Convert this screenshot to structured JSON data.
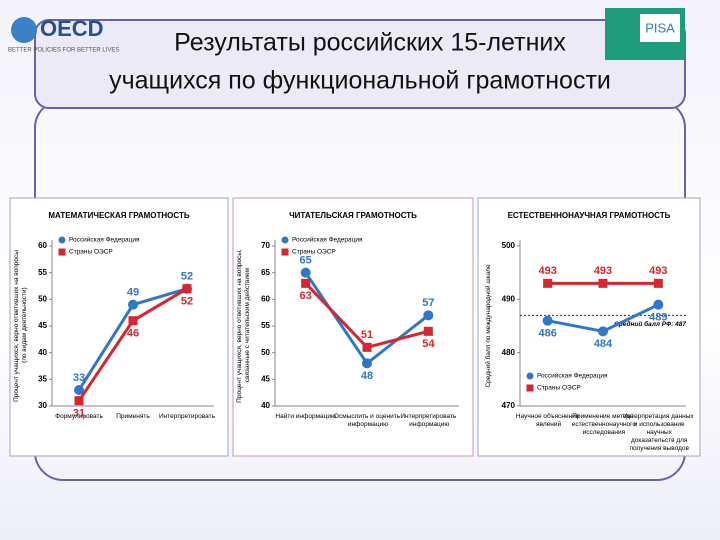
{
  "header": {
    "title": [
      "Результаты российских 15-летних",
      "учащихся по функциональной грамотности"
    ],
    "oecd": "OECD",
    "oecd_tagline": "BETTER POLICIES FOR BETTER LIVES",
    "pisa": "PISA"
  },
  "chart_data": [
    {
      "type": "line",
      "title": "МАТЕМАТИЧЕСКАЯ ГРАМОТНОСТЬ",
      "y_label": "Процент учащихся, верно ответивших на вопросы (по видам деятельности)",
      "categories": [
        "Формулировать",
        "Применять",
        "Интерпретировать"
      ],
      "series": [
        {
          "name": "Российская Федерация",
          "color": "#2f78c8",
          "values": [
            33,
            49,
            52
          ]
        },
        {
          "name": "Страны ОЭСР",
          "color": "#d8252e",
          "values": [
            31,
            46,
            52
          ]
        }
      ],
      "ylim": [
        30,
        60
      ],
      "yticks": [
        30,
        35,
        40,
        45,
        50,
        55,
        60
      ],
      "legend": "top-left"
    },
    {
      "type": "line",
      "title": "ЧИТАТЕЛЬСКАЯ ГРАМОТНОСТЬ",
      "y_label": "Процент учащихся, верно ответивших на вопросы, связанные с читательским действием",
      "categories": [
        "Найти информацию",
        "Осмыслить и оценить информацию",
        "Интерпретировать информацию"
      ],
      "series": [
        {
          "name": "Российская Федерация",
          "color": "#2f78c8",
          "values": [
            65,
            48,
            57
          ]
        },
        {
          "name": "Страны ОЭСР",
          "color": "#d8252e",
          "values": [
            63,
            51,
            54
          ]
        }
      ],
      "ylim": [
        40,
        70
      ],
      "yticks": [
        40,
        45,
        50,
        55,
        60,
        65,
        70
      ],
      "legend": "top-left"
    },
    {
      "type": "line",
      "title": "ЕСТЕСТВЕННОНАУЧНАЯ ГРАМОТНОСТЬ",
      "y_label": "Средний балл по международной шкале",
      "categories": [
        "Научное объяснение явлений",
        "Применение метода естественнонаучного исследования",
        "Интерпретация данных и использование научных доказательств для получения выводов"
      ],
      "series": [
        {
          "name": "Российская Федерация",
          "color": "#2f78c8",
          "values": [
            486,
            484,
            489
          ]
        },
        {
          "name": "Страны ОЭСР",
          "color": "#d8252e",
          "values": [
            493,
            493,
            493
          ]
        }
      ],
      "ylim": [
        470,
        500
      ],
      "yticks": [
        470,
        480,
        490,
        500
      ],
      "legend": "bottom-left",
      "reference_line": {
        "value": 487,
        "label": "Средний балл РФ: 487"
      }
    }
  ]
}
